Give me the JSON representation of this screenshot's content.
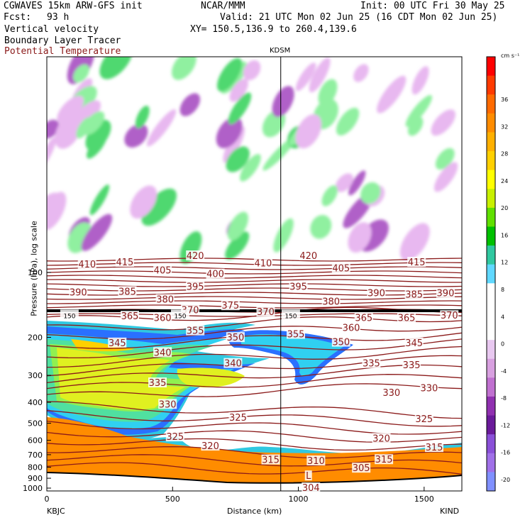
{
  "header": {
    "model": "CGWAVES 15km ARW-GFS init",
    "center": "NCAR/MMM",
    "init": "Init: 00 UTC Fri 30 May 25",
    "fcst_label": "Fcst:",
    "fcst_value": "93 h",
    "valid": "Valid: 21 UTC Mon 02 Jun 25 (16 CDT Mon 02 Jun 25)",
    "field1": "Vertical velocity",
    "xy": "XY= 150.5,136.9 to 260.4,139.6",
    "field2": "Boundary Layer Tracer",
    "field3": "Potential Temperature",
    "field3_color": "#8b1a1a"
  },
  "chart_data": {
    "type": "heatmap",
    "station_marker": "KDSM",
    "station_marker_x_km": 930,
    "xlabel": "Distance (km)",
    "ylabel": "Pressure (hPa), log scale",
    "x_ticks": [
      0,
      500,
      1000,
      1500
    ],
    "xlim": [
      0,
      1650
    ],
    "x_endpoints": {
      "left": "KBJC",
      "right": "KIND"
    },
    "y_ticks": [
      100,
      200,
      300,
      400,
      500,
      600,
      700,
      800,
      900,
      1000
    ],
    "y_scale": "log",
    "colorbar": {
      "units": "cm s⁻¹",
      "ticks": [
        36,
        32,
        28,
        24,
        20,
        16,
        12,
        8,
        4,
        0,
        -4,
        -8,
        -12,
        -16,
        -20
      ],
      "colors": [
        "#ff0000",
        "#ff3a00",
        "#ff6a00",
        "#ff8c00",
        "#ffb000",
        "#ffd000",
        "#ffff00",
        "#c8f000",
        "#60e000",
        "#00c000",
        "#30c8a0",
        "#60d8ff",
        "#ffffff",
        "#ffffff",
        "#ffffff",
        "#e8c8f0",
        "#d8a0e0",
        "#c070d0",
        "#9030b0",
        "#6a1a9a",
        "#8a50d8",
        "#a070e8",
        "#8090ff"
      ]
    },
    "theta_contour_labels": [
      {
        "label": "420",
        "x_km": 590,
        "p_hPa": 84
      },
      {
        "label": "410",
        "x_km": 160,
        "p_hPa": 92
      },
      {
        "label": "415",
        "x_km": 310,
        "p_hPa": 90
      },
      {
        "label": "405",
        "x_km": 460,
        "p_hPa": 98
      },
      {
        "label": "400",
        "x_km": 670,
        "p_hPa": 102
      },
      {
        "label": "410",
        "x_km": 860,
        "p_hPa": 91
      },
      {
        "label": "420",
        "x_km": 1040,
        "p_hPa": 84
      },
      {
        "label": "405",
        "x_km": 1170,
        "p_hPa": 96
      },
      {
        "label": "415",
        "x_km": 1470,
        "p_hPa": 90
      },
      {
        "label": "390",
        "x_km": 125,
        "p_hPa": 124
      },
      {
        "label": "385",
        "x_km": 320,
        "p_hPa": 123
      },
      {
        "label": "380",
        "x_km": 470,
        "p_hPa": 134
      },
      {
        "label": "395",
        "x_km": 590,
        "p_hPa": 117
      },
      {
        "label": "375",
        "x_km": 730,
        "p_hPa": 143
      },
      {
        "label": "370",
        "x_km": 570,
        "p_hPa": 150
      },
      {
        "label": "395",
        "x_km": 1000,
        "p_hPa": 117
      },
      {
        "label": "380",
        "x_km": 1130,
        "p_hPa": 137
      },
      {
        "label": "390",
        "x_km": 1310,
        "p_hPa": 125
      },
      {
        "label": "385",
        "x_km": 1460,
        "p_hPa": 127
      },
      {
        "label": "390",
        "x_km": 1585,
        "p_hPa": 125
      },
      {
        "label": "365",
        "x_km": 330,
        "p_hPa": 160
      },
      {
        "label": "360",
        "x_km": 460,
        "p_hPa": 163
      },
      {
        "label": "370",
        "x_km": 870,
        "p_hPa": 153
      },
      {
        "label": "360",
        "x_km": 1210,
        "p_hPa": 181
      },
      {
        "label": "365",
        "x_km": 1260,
        "p_hPa": 163
      },
      {
        "label": "365",
        "x_km": 1430,
        "p_hPa": 163
      },
      {
        "label": "370",
        "x_km": 1600,
        "p_hPa": 159
      },
      {
        "label": "355",
        "x_km": 590,
        "p_hPa": 187
      },
      {
        "label": "350",
        "x_km": 750,
        "p_hPa": 201
      },
      {
        "label": "355",
        "x_km": 990,
        "p_hPa": 194
      },
      {
        "label": "350",
        "x_km": 1170,
        "p_hPa": 211
      },
      {
        "label": "345",
        "x_km": 1460,
        "p_hPa": 213
      },
      {
        "label": "345",
        "x_km": 280,
        "p_hPa": 213
      },
      {
        "label": "340",
        "x_km": 460,
        "p_hPa": 236
      },
      {
        "label": "340",
        "x_km": 740,
        "p_hPa": 265
      },
      {
        "label": "335",
        "x_km": 1290,
        "p_hPa": 265
      },
      {
        "label": "335",
        "x_km": 1450,
        "p_hPa": 270
      },
      {
        "label": "335",
        "x_km": 440,
        "p_hPa": 326
      },
      {
        "label": "330",
        "x_km": 480,
        "p_hPa": 410
      },
      {
        "label": "330",
        "x_km": 1370,
        "p_hPa": 362
      },
      {
        "label": "330",
        "x_km": 1520,
        "p_hPa": 345
      },
      {
        "label": "325",
        "x_km": 760,
        "p_hPa": 472
      },
      {
        "label": "325",
        "x_km": 1500,
        "p_hPa": 480
      },
      {
        "label": "325",
        "x_km": 510,
        "p_hPa": 580
      },
      {
        "label": "320",
        "x_km": 650,
        "p_hPa": 640
      },
      {
        "label": "320",
        "x_km": 1330,
        "p_hPa": 590
      },
      {
        "label": "315",
        "x_km": 1540,
        "p_hPa": 650
      },
      {
        "label": "315",
        "x_km": 890,
        "p_hPa": 742
      },
      {
        "label": "310",
        "x_km": 1070,
        "p_hPa": 750
      },
      {
        "label": "315",
        "x_km": 1340,
        "p_hPa": 740
      },
      {
        "label": "305",
        "x_km": 1250,
        "p_hPa": 810
      },
      {
        "label": "304",
        "x_km": 1050,
        "p_hPa": 1000
      }
    ],
    "tracer_contour_labels": [
      {
        "label": "150",
        "x_km": 90,
        "p_hPa": 158
      },
      {
        "label": "150",
        "x_km": 530,
        "p_hPa": 158
      },
      {
        "label": "150",
        "x_km": 970,
        "p_hPa": 158
      }
    ],
    "annotations": [
      {
        "label": "L",
        "x_km": 1040,
        "p_hPa": 880
      }
    ]
  }
}
